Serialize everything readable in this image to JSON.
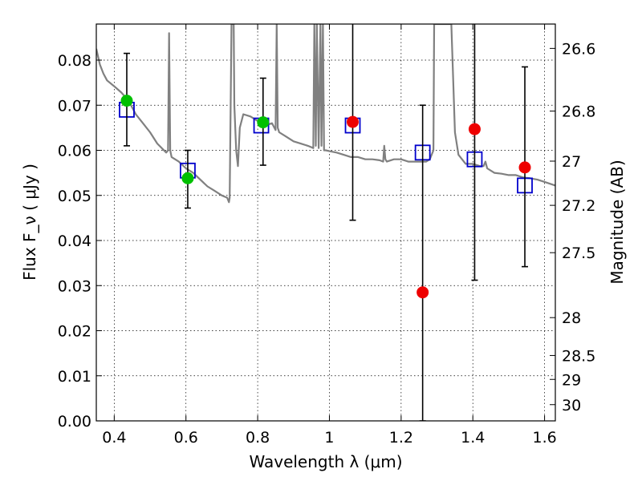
{
  "chart_data": {
    "type": "scatter",
    "xlabel": "Wavelength  λ (μm)",
    "ylabel": "Flux  F_ν  ( μJy )",
    "ylabel_right": "Magnitude (AB)",
    "xlim": [
      0.35,
      1.63
    ],
    "ylim": [
      0.0,
      0.088
    ],
    "grid": true,
    "x_ticks": [
      0.4,
      0.6,
      0.8,
      1.0,
      1.2,
      1.4,
      1.6
    ],
    "x_tick_labels": [
      "0.4",
      "0.6",
      "0.8",
      "1",
      "1.2",
      "1.4",
      "1.6"
    ],
    "y_ticks": [
      0.0,
      0.01,
      0.02,
      0.03,
      0.04,
      0.05,
      0.06,
      0.07,
      0.08
    ],
    "y_tick_labels": [
      "0.00",
      "0.01",
      "0.02",
      "0.03",
      "0.04",
      "0.05",
      "0.06",
      "0.07",
      "0.08"
    ],
    "right_ticks": [
      {
        "flux": 0.0826,
        "label": "26.6"
      },
      {
        "flux": 0.0687,
        "label": "26.8"
      },
      {
        "flux": 0.0576,
        "label": "27"
      },
      {
        "flux": 0.0478,
        "label": "27.2"
      },
      {
        "flux": 0.0373,
        "label": "27.5"
      },
      {
        "flux": 0.0229,
        "label": "28"
      },
      {
        "flux": 0.0145,
        "label": "28.5"
      },
      {
        "flux": 0.0092,
        "label": "29"
      },
      {
        "flux": 0.0036,
        "label": "30"
      }
    ],
    "series": [
      {
        "kind": "model-spectrum",
        "color": "#808080",
        "x": [
          0.35,
          0.36,
          0.37,
          0.38,
          0.4,
          0.42,
          0.44,
          0.46,
          0.48,
          0.5,
          0.52,
          0.545,
          0.55,
          0.553,
          0.556,
          0.56,
          0.58,
          0.6,
          0.62,
          0.64,
          0.66,
          0.68,
          0.7,
          0.715,
          0.72,
          0.722,
          0.727,
          0.733,
          0.735,
          0.74,
          0.745,
          0.75,
          0.76,
          0.78,
          0.8,
          0.82,
          0.84,
          0.85,
          0.853,
          0.856,
          0.86,
          0.88,
          0.9,
          0.92,
          0.94,
          0.955,
          0.958,
          0.962,
          0.965,
          0.97,
          0.975,
          0.978,
          0.982,
          0.985,
          0.99,
          1.0,
          1.02,
          1.04,
          1.06,
          1.08,
          1.1,
          1.12,
          1.14,
          1.15,
          1.153,
          1.156,
          1.16,
          1.18,
          1.2,
          1.22,
          1.25,
          1.27,
          1.28,
          1.29,
          1.292,
          1.3,
          1.32,
          1.33,
          1.34,
          1.35,
          1.36,
          1.38,
          1.4,
          1.42,
          1.43,
          1.435,
          1.44,
          1.46,
          1.48,
          1.5,
          1.52,
          1.54,
          1.56,
          1.58,
          1.6,
          1.63
        ],
        "y": [
          0.0825,
          0.079,
          0.077,
          0.0755,
          0.0742,
          0.0728,
          0.071,
          0.068,
          0.066,
          0.064,
          0.0615,
          0.0595,
          0.06,
          0.086,
          0.06,
          0.0585,
          0.0575,
          0.056,
          0.055,
          0.0535,
          0.052,
          0.051,
          0.05,
          0.0495,
          0.0485,
          0.0495,
          0.088,
          0.088,
          0.07,
          0.06,
          0.0565,
          0.065,
          0.068,
          0.0675,
          0.0665,
          0.0655,
          0.066,
          0.0645,
          0.088,
          0.065,
          0.064,
          0.063,
          0.062,
          0.0615,
          0.061,
          0.0605,
          0.088,
          0.061,
          0.088,
          0.0605,
          0.088,
          0.061,
          0.088,
          0.06,
          0.06,
          0.0598,
          0.0595,
          0.059,
          0.0585,
          0.0585,
          0.058,
          0.058,
          0.0578,
          0.0575,
          0.061,
          0.058,
          0.0575,
          0.058,
          0.058,
          0.0575,
          0.0575,
          0.0575,
          0.058,
          0.06,
          0.088,
          0.088,
          0.088,
          0.088,
          0.088,
          0.064,
          0.059,
          0.057,
          0.057,
          0.0565,
          0.0565,
          0.0575,
          0.056,
          0.055,
          0.0548,
          0.0545,
          0.0545,
          0.054,
          0.0538,
          0.0535,
          0.053,
          0.0522
        ]
      },
      {
        "kind": "model-bands",
        "color": "#0000cc",
        "x": [
          0.435,
          0.605,
          0.81,
          1.065,
          1.26,
          1.405,
          1.545
        ],
        "y": [
          0.069,
          0.0555,
          0.0655,
          0.0655,
          0.0595,
          0.058,
          0.0522
        ]
      },
      {
        "kind": "observed",
        "color": "#00c000",
        "x": [
          0.435,
          0.605,
          0.815
        ],
        "y": [
          0.071,
          0.0538,
          0.0662
        ],
        "yerr_low": [
          0.061,
          0.0472,
          0.0567
        ],
        "yerr_high": [
          0.0815,
          0.06,
          0.076
        ]
      },
      {
        "kind": "observed",
        "color": "#ee0000",
        "x": [
          1.065,
          1.26,
          1.405,
          1.545
        ],
        "y": [
          0.0663,
          0.0285,
          0.0647,
          0.0562
        ],
        "yerr_low": [
          0.0445,
          0.0,
          0.0312,
          0.0342
        ],
        "yerr_high": [
          0.089,
          0.07,
          0.089,
          0.0785
        ]
      }
    ]
  }
}
